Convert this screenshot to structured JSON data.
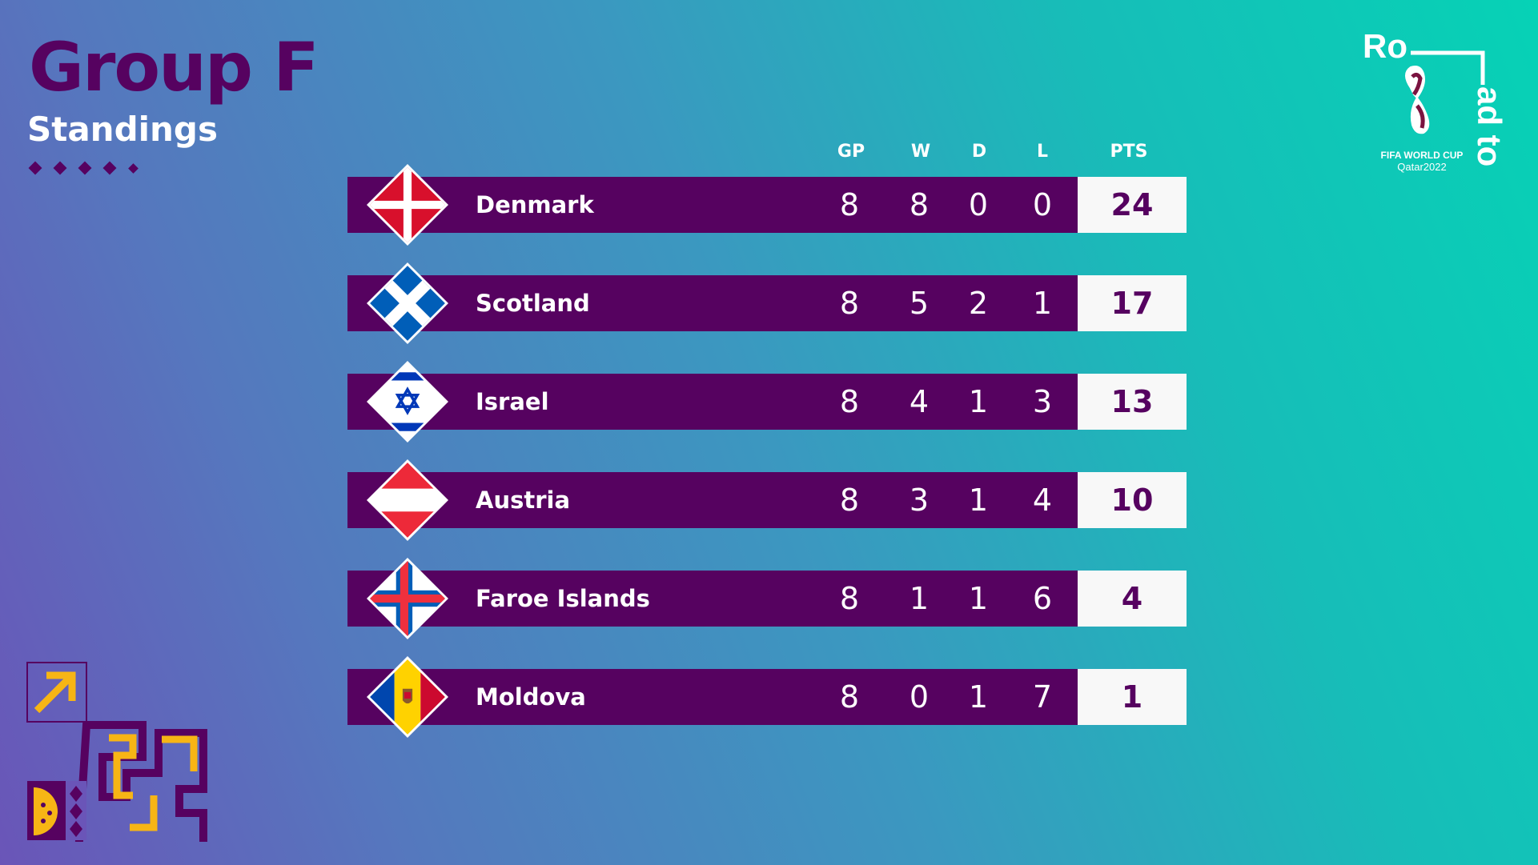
{
  "header": {
    "title": "Group F",
    "subtitle": "Standings"
  },
  "columns": {
    "gp": "GP",
    "w": "W",
    "d": "D",
    "l": "L",
    "pts": "PTS"
  },
  "teams": [
    {
      "name": "Denmark",
      "flag": "denmark-flag",
      "gp": "8",
      "w": "8",
      "d": "0",
      "l": "0",
      "pts": "24"
    },
    {
      "name": "Scotland",
      "flag": "scotland-flag",
      "gp": "8",
      "w": "5",
      "d": "2",
      "l": "1",
      "pts": "17"
    },
    {
      "name": "Israel",
      "flag": "israel-flag",
      "gp": "8",
      "w": "4",
      "d": "1",
      "l": "3",
      "pts": "13"
    },
    {
      "name": "Austria",
      "flag": "austria-flag",
      "gp": "8",
      "w": "3",
      "d": "1",
      "l": "4",
      "pts": "10"
    },
    {
      "name": "Faroe Islands",
      "flag": "faroe-islands-flag",
      "gp": "8",
      "w": "1",
      "d": "1",
      "l": "6",
      "pts": "4"
    },
    {
      "name": "Moldova",
      "flag": "moldova-flag",
      "gp": "8",
      "w": "0",
      "d": "1",
      "l": "7",
      "pts": "1"
    }
  ],
  "logo": {
    "road_text_1": "Ro",
    "road_text_2": "ad to",
    "line1": "FIFA WORLD CUP",
    "line2": "Qatar2022"
  },
  "colors": {
    "purple": "#560260",
    "white": "#ffffff",
    "pts_bg": "#f8f8f8",
    "accent_yellow": "#f7b515"
  }
}
